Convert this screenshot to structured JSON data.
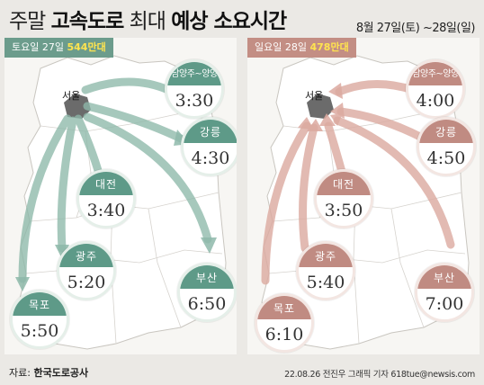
{
  "title": {
    "part1": "주말",
    "part2": "고속도로",
    "part3": "최대",
    "part4": "예상 소요시간"
  },
  "date_range": "8월 27일(토) ~28일(일)",
  "saturday": {
    "label": "토요일 27일",
    "count": "544만대",
    "origin": "서울",
    "cities": [
      {
        "name": "남양주~양양",
        "time": "3:30"
      },
      {
        "name": "강릉",
        "time": "4:30"
      },
      {
        "name": "대전",
        "time": "3:40"
      },
      {
        "name": "광주",
        "time": "5:20"
      },
      {
        "name": "부산",
        "time": "6:50"
      },
      {
        "name": "목포",
        "time": "5:50"
      }
    ]
  },
  "sunday": {
    "label": "일요일 28일",
    "count": "478만대",
    "origin": "서울",
    "cities": [
      {
        "name": "남양주~양양",
        "time": "4:00"
      },
      {
        "name": "강릉",
        "time": "4:50"
      },
      {
        "name": "대전",
        "time": "3:50"
      },
      {
        "name": "광주",
        "time": "5:40"
      },
      {
        "name": "부산",
        "time": "7:00"
      },
      {
        "name": "목포",
        "time": "6:10"
      }
    ]
  },
  "source_label": "자료:",
  "source_name": "한국도로공사",
  "credit": "22.08.26 전진우 그래픽 기자 618tue@newsis.com",
  "colors": {
    "green": "#5e9a88",
    "pink": "#c08b82",
    "highlight": "#ffe44f",
    "background": "#ebe9e5"
  }
}
